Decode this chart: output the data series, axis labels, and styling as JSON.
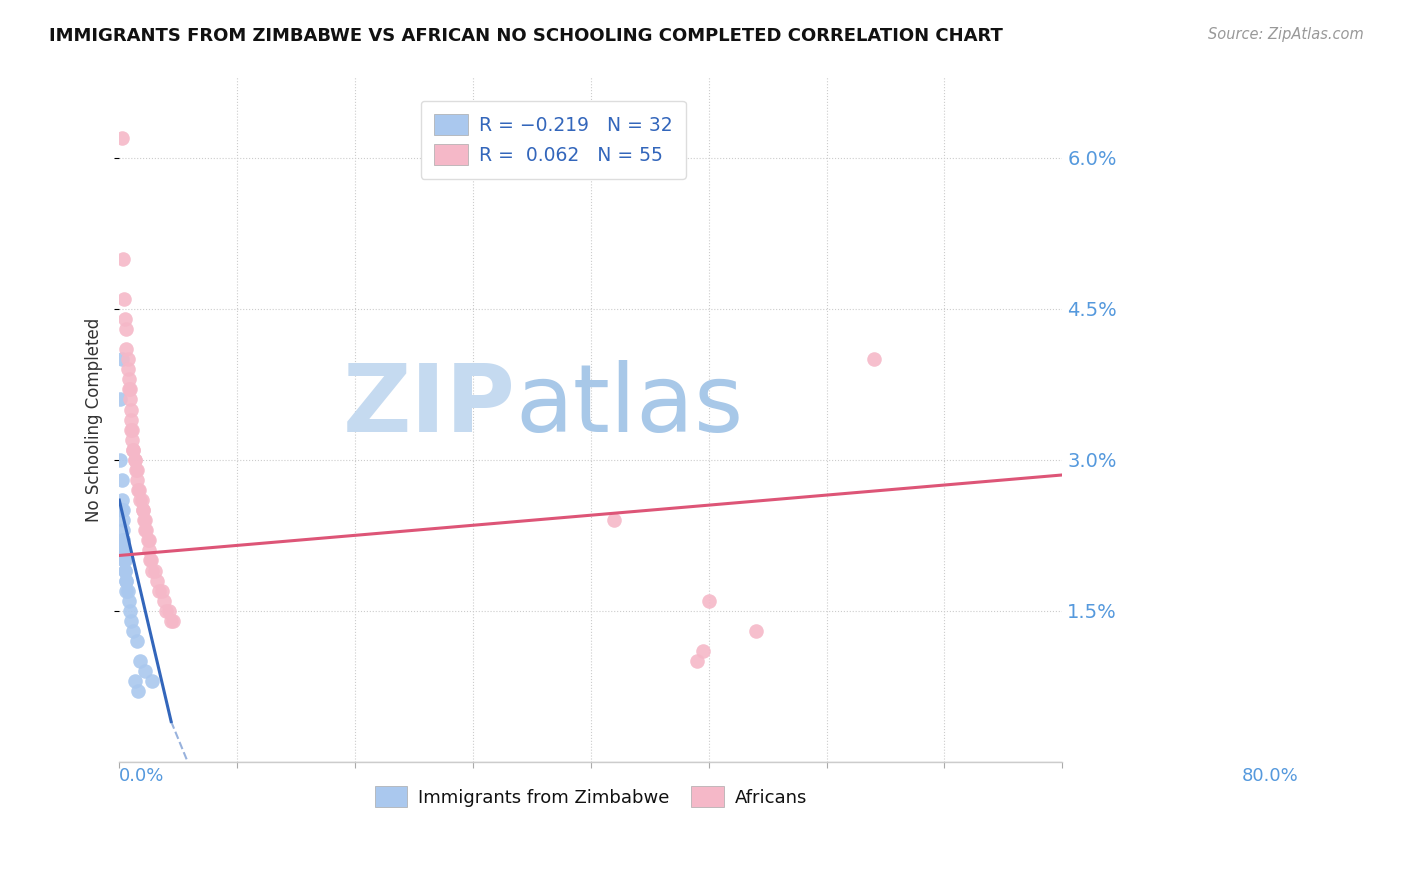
{
  "title": "IMMIGRANTS FROM ZIMBABWE VS AFRICAN NO SCHOOLING COMPLETED CORRELATION CHART",
  "source": "Source: ZipAtlas.com",
  "ylabel": "No Schooling Completed",
  "xmin": 0.0,
  "xmax": 0.8,
  "ymin": 0.0,
  "ymax": 0.068,
  "yticks": [
    0.015,
    0.03,
    0.045,
    0.06
  ],
  "ytick_labels": [
    "1.5%",
    "3.0%",
    "4.5%",
    "6.0%"
  ],
  "xticks": [
    0.0,
    0.1,
    0.2,
    0.3,
    0.4,
    0.5,
    0.6,
    0.7,
    0.8
  ],
  "zimbabwe_color": "#aac8ee",
  "africans_color": "#f5b8c8",
  "line_zimbabwe_color": "#3366bb",
  "line_africans_color": "#dd5577",
  "zim_line_x": [
    0.0,
    0.044
  ],
  "zim_line_y": [
    0.026,
    0.004
  ],
  "afr_line_x": [
    0.0,
    0.8
  ],
  "afr_line_y": [
    0.0205,
    0.0285
  ],
  "watermark_zip_color": "#c8ddf0",
  "watermark_atlas_color": "#b0cce8",
  "zimbabwe_points": [
    [
      0.001,
      0.036
    ],
    [
      0.001,
      0.03
    ],
    [
      0.002,
      0.04
    ],
    [
      0.002,
      0.028
    ],
    [
      0.002,
      0.026
    ],
    [
      0.002,
      0.025
    ],
    [
      0.003,
      0.025
    ],
    [
      0.003,
      0.024
    ],
    [
      0.003,
      0.023
    ],
    [
      0.003,
      0.022
    ],
    [
      0.003,
      0.022
    ],
    [
      0.004,
      0.021
    ],
    [
      0.004,
      0.021
    ],
    [
      0.004,
      0.02
    ],
    [
      0.004,
      0.02
    ],
    [
      0.005,
      0.02
    ],
    [
      0.005,
      0.019
    ],
    [
      0.005,
      0.019
    ],
    [
      0.006,
      0.018
    ],
    [
      0.006,
      0.018
    ],
    [
      0.006,
      0.017
    ],
    [
      0.007,
      0.017
    ],
    [
      0.008,
      0.016
    ],
    [
      0.009,
      0.015
    ],
    [
      0.01,
      0.014
    ],
    [
      0.012,
      0.013
    ],
    [
      0.015,
      0.012
    ],
    [
      0.018,
      0.01
    ],
    [
      0.022,
      0.009
    ],
    [
      0.028,
      0.008
    ],
    [
      0.013,
      0.008
    ],
    [
      0.016,
      0.007
    ]
  ],
  "africans_points": [
    [
      0.002,
      0.062
    ],
    [
      0.003,
      0.05
    ],
    [
      0.004,
      0.046
    ],
    [
      0.005,
      0.044
    ],
    [
      0.006,
      0.043
    ],
    [
      0.006,
      0.041
    ],
    [
      0.007,
      0.04
    ],
    [
      0.007,
      0.039
    ],
    [
      0.008,
      0.038
    ],
    [
      0.008,
      0.037
    ],
    [
      0.009,
      0.037
    ],
    [
      0.009,
      0.036
    ],
    [
      0.01,
      0.035
    ],
    [
      0.01,
      0.034
    ],
    [
      0.01,
      0.033
    ],
    [
      0.011,
      0.033
    ],
    [
      0.011,
      0.032
    ],
    [
      0.012,
      0.031
    ],
    [
      0.012,
      0.031
    ],
    [
      0.013,
      0.03
    ],
    [
      0.013,
      0.03
    ],
    [
      0.014,
      0.029
    ],
    [
      0.015,
      0.029
    ],
    [
      0.015,
      0.028
    ],
    [
      0.016,
      0.027
    ],
    [
      0.017,
      0.027
    ],
    [
      0.018,
      0.026
    ],
    [
      0.019,
      0.026
    ],
    [
      0.02,
      0.025
    ],
    [
      0.02,
      0.025
    ],
    [
      0.021,
      0.024
    ],
    [
      0.022,
      0.024
    ],
    [
      0.022,
      0.023
    ],
    [
      0.023,
      0.023
    ],
    [
      0.024,
      0.022
    ],
    [
      0.025,
      0.022
    ],
    [
      0.025,
      0.021
    ],
    [
      0.026,
      0.02
    ],
    [
      0.027,
      0.02
    ],
    [
      0.028,
      0.019
    ],
    [
      0.03,
      0.019
    ],
    [
      0.032,
      0.018
    ],
    [
      0.034,
      0.017
    ],
    [
      0.036,
      0.017
    ],
    [
      0.038,
      0.016
    ],
    [
      0.04,
      0.015
    ],
    [
      0.042,
      0.015
    ],
    [
      0.044,
      0.014
    ],
    [
      0.046,
      0.014
    ],
    [
      0.42,
      0.024
    ],
    [
      0.5,
      0.016
    ],
    [
      0.54,
      0.013
    ],
    [
      0.64,
      0.04
    ],
    [
      0.495,
      0.011
    ],
    [
      0.49,
      0.01
    ]
  ]
}
